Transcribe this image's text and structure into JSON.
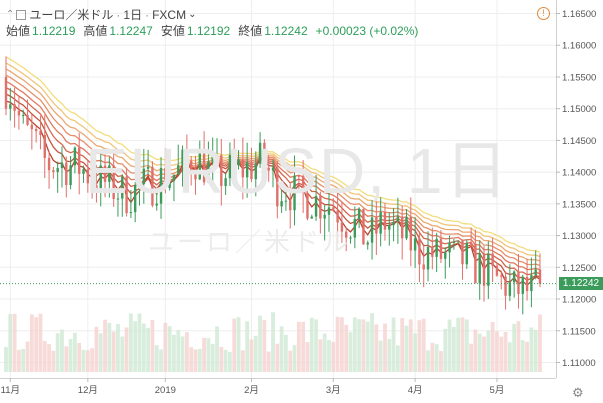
{
  "header": {
    "symbol_name": "ユーロ／米ドル",
    "interval": "1日",
    "exchange": "FXCM",
    "open_label": "始値",
    "open_value": "1.12219",
    "high_label": "高値",
    "high_value": "1.12247",
    "low_label": "安値",
    "low_value": "1.12192",
    "close_label": "終値",
    "close_value": "1.12242",
    "change": "+0.00023 (+0.02%)",
    "alert_icon": "!"
  },
  "watermark": {
    "ticker": "EURUSD, 1日",
    "name": "ユーロ／米ドル"
  },
  "last_price_badge": "1.12242",
  "colors": {
    "up": "#3a9b5b",
    "down": "#e0706a",
    "ribbon": [
      "#b84532",
      "#c8563f",
      "#d4674e",
      "#de7a5e",
      "#e6906a",
      "#eca872",
      "#f0c47a",
      "#f2dd7e"
    ],
    "grid": "#eeeeee",
    "last_line": "#3a9b5b"
  },
  "chart_data": {
    "type": "candlestick",
    "y_axis": {
      "ticks": [
        "1.16500",
        "1.16000",
        "1.15500",
        "1.15000",
        "1.14500",
        "1.14000",
        "1.13500",
        "1.13000",
        "1.12500",
        "1.12000",
        "1.11500",
        "1.11000"
      ],
      "range": [
        1.1085,
        1.1665
      ]
    },
    "x_axis": {
      "ticks": [
        "11月",
        "12月",
        "2019",
        "2月",
        "3月",
        "4月",
        "5月"
      ],
      "tick_index": [
        1,
        19,
        37,
        57,
        76,
        95,
        114
      ],
      "bars": 125
    },
    "last_price": 1.12242,
    "ribbon_count": 8,
    "anchors": [
      [
        0,
        1.1535
      ],
      [
        5,
        1.146
      ],
      [
        10,
        1.1412
      ],
      [
        16,
        1.141
      ],
      [
        22,
        1.1385
      ],
      [
        28,
        1.1365
      ],
      [
        33,
        1.138
      ],
      [
        38,
        1.1395
      ],
      [
        44,
        1.142
      ],
      [
        49,
        1.1395
      ],
      [
        55,
        1.1405
      ],
      [
        59,
        1.1415
      ],
      [
        64,
        1.1375
      ],
      [
        69,
        1.136
      ],
      [
        75,
        1.135
      ],
      [
        80,
        1.132
      ],
      [
        84,
        1.1295
      ],
      [
        88,
        1.132
      ],
      [
        92,
        1.13
      ],
      [
        96,
        1.1275
      ],
      [
        101,
        1.1268
      ],
      [
        106,
        1.1262
      ],
      [
        110,
        1.125
      ],
      [
        114,
        1.123
      ],
      [
        118,
        1.1215
      ],
      [
        122,
        1.1212
      ],
      [
        124,
        1.1224
      ]
    ]
  }
}
